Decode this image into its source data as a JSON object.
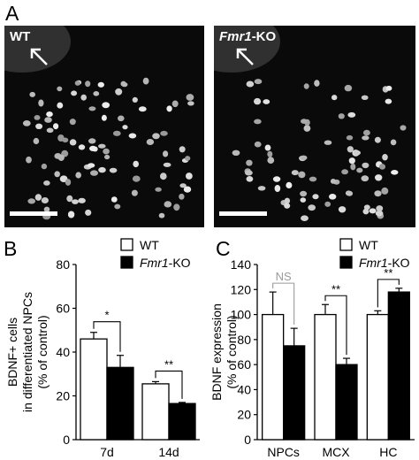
{
  "panels": {
    "a": "A",
    "b": "B",
    "c": "C"
  },
  "micrographs": [
    {
      "label": "WT",
      "label_italic": "",
      "label_suffix": ""
    },
    {
      "label": "",
      "label_italic": "Fmr1",
      "label_suffix": "-KO"
    }
  ],
  "legend": {
    "wt": "WT",
    "ko_italic": "Fmr1",
    "ko_suffix": "-KO"
  },
  "colors": {
    "wt_bar": "#ffffff",
    "ko_bar": "#000000",
    "ns_text": "#9a9a9a",
    "micrograph_bg": "#0a0a0a",
    "nucleus": "#bdbdbd"
  },
  "chart_data": [
    {
      "type": "bar",
      "categories": [
        "7d",
        "14d"
      ],
      "series": [
        {
          "name": "WT",
          "values": [
            46,
            25.5
          ],
          "errors": [
            3,
            1
          ]
        },
        {
          "name": "Fmr1-KO",
          "values": [
            33,
            16.5
          ],
          "errors": [
            5.5,
            0.5
          ]
        }
      ],
      "ylabel_lines": [
        "BDNF+ cells",
        "in differentiated NPCs",
        "(% of control)"
      ],
      "ylim": [
        0,
        80
      ],
      "yticks": [
        "0",
        "20",
        "40",
        "60",
        "80"
      ],
      "significance": [
        "*",
        "**"
      ],
      "legend_position": "top-right"
    },
    {
      "type": "bar",
      "categories": [
        "NPCs",
        "MCX",
        "HC"
      ],
      "series": [
        {
          "name": "WT",
          "values": [
            100,
            100,
            100
          ],
          "errors": [
            18,
            8,
            3
          ]
        },
        {
          "name": "Fmr1-KO",
          "values": [
            75,
            60,
            118
          ],
          "errors": [
            14,
            5,
            3
          ]
        }
      ],
      "ylabel_lines": [
        "BDNF expression",
        "(% of control)"
      ],
      "ylim": [
        0,
        140
      ],
      "yticks": [
        "0",
        "20",
        "40",
        "60",
        "80",
        "100",
        "120",
        "140"
      ],
      "significance": [
        "NS",
        "**",
        "**"
      ],
      "legend_position": "top-right"
    }
  ]
}
